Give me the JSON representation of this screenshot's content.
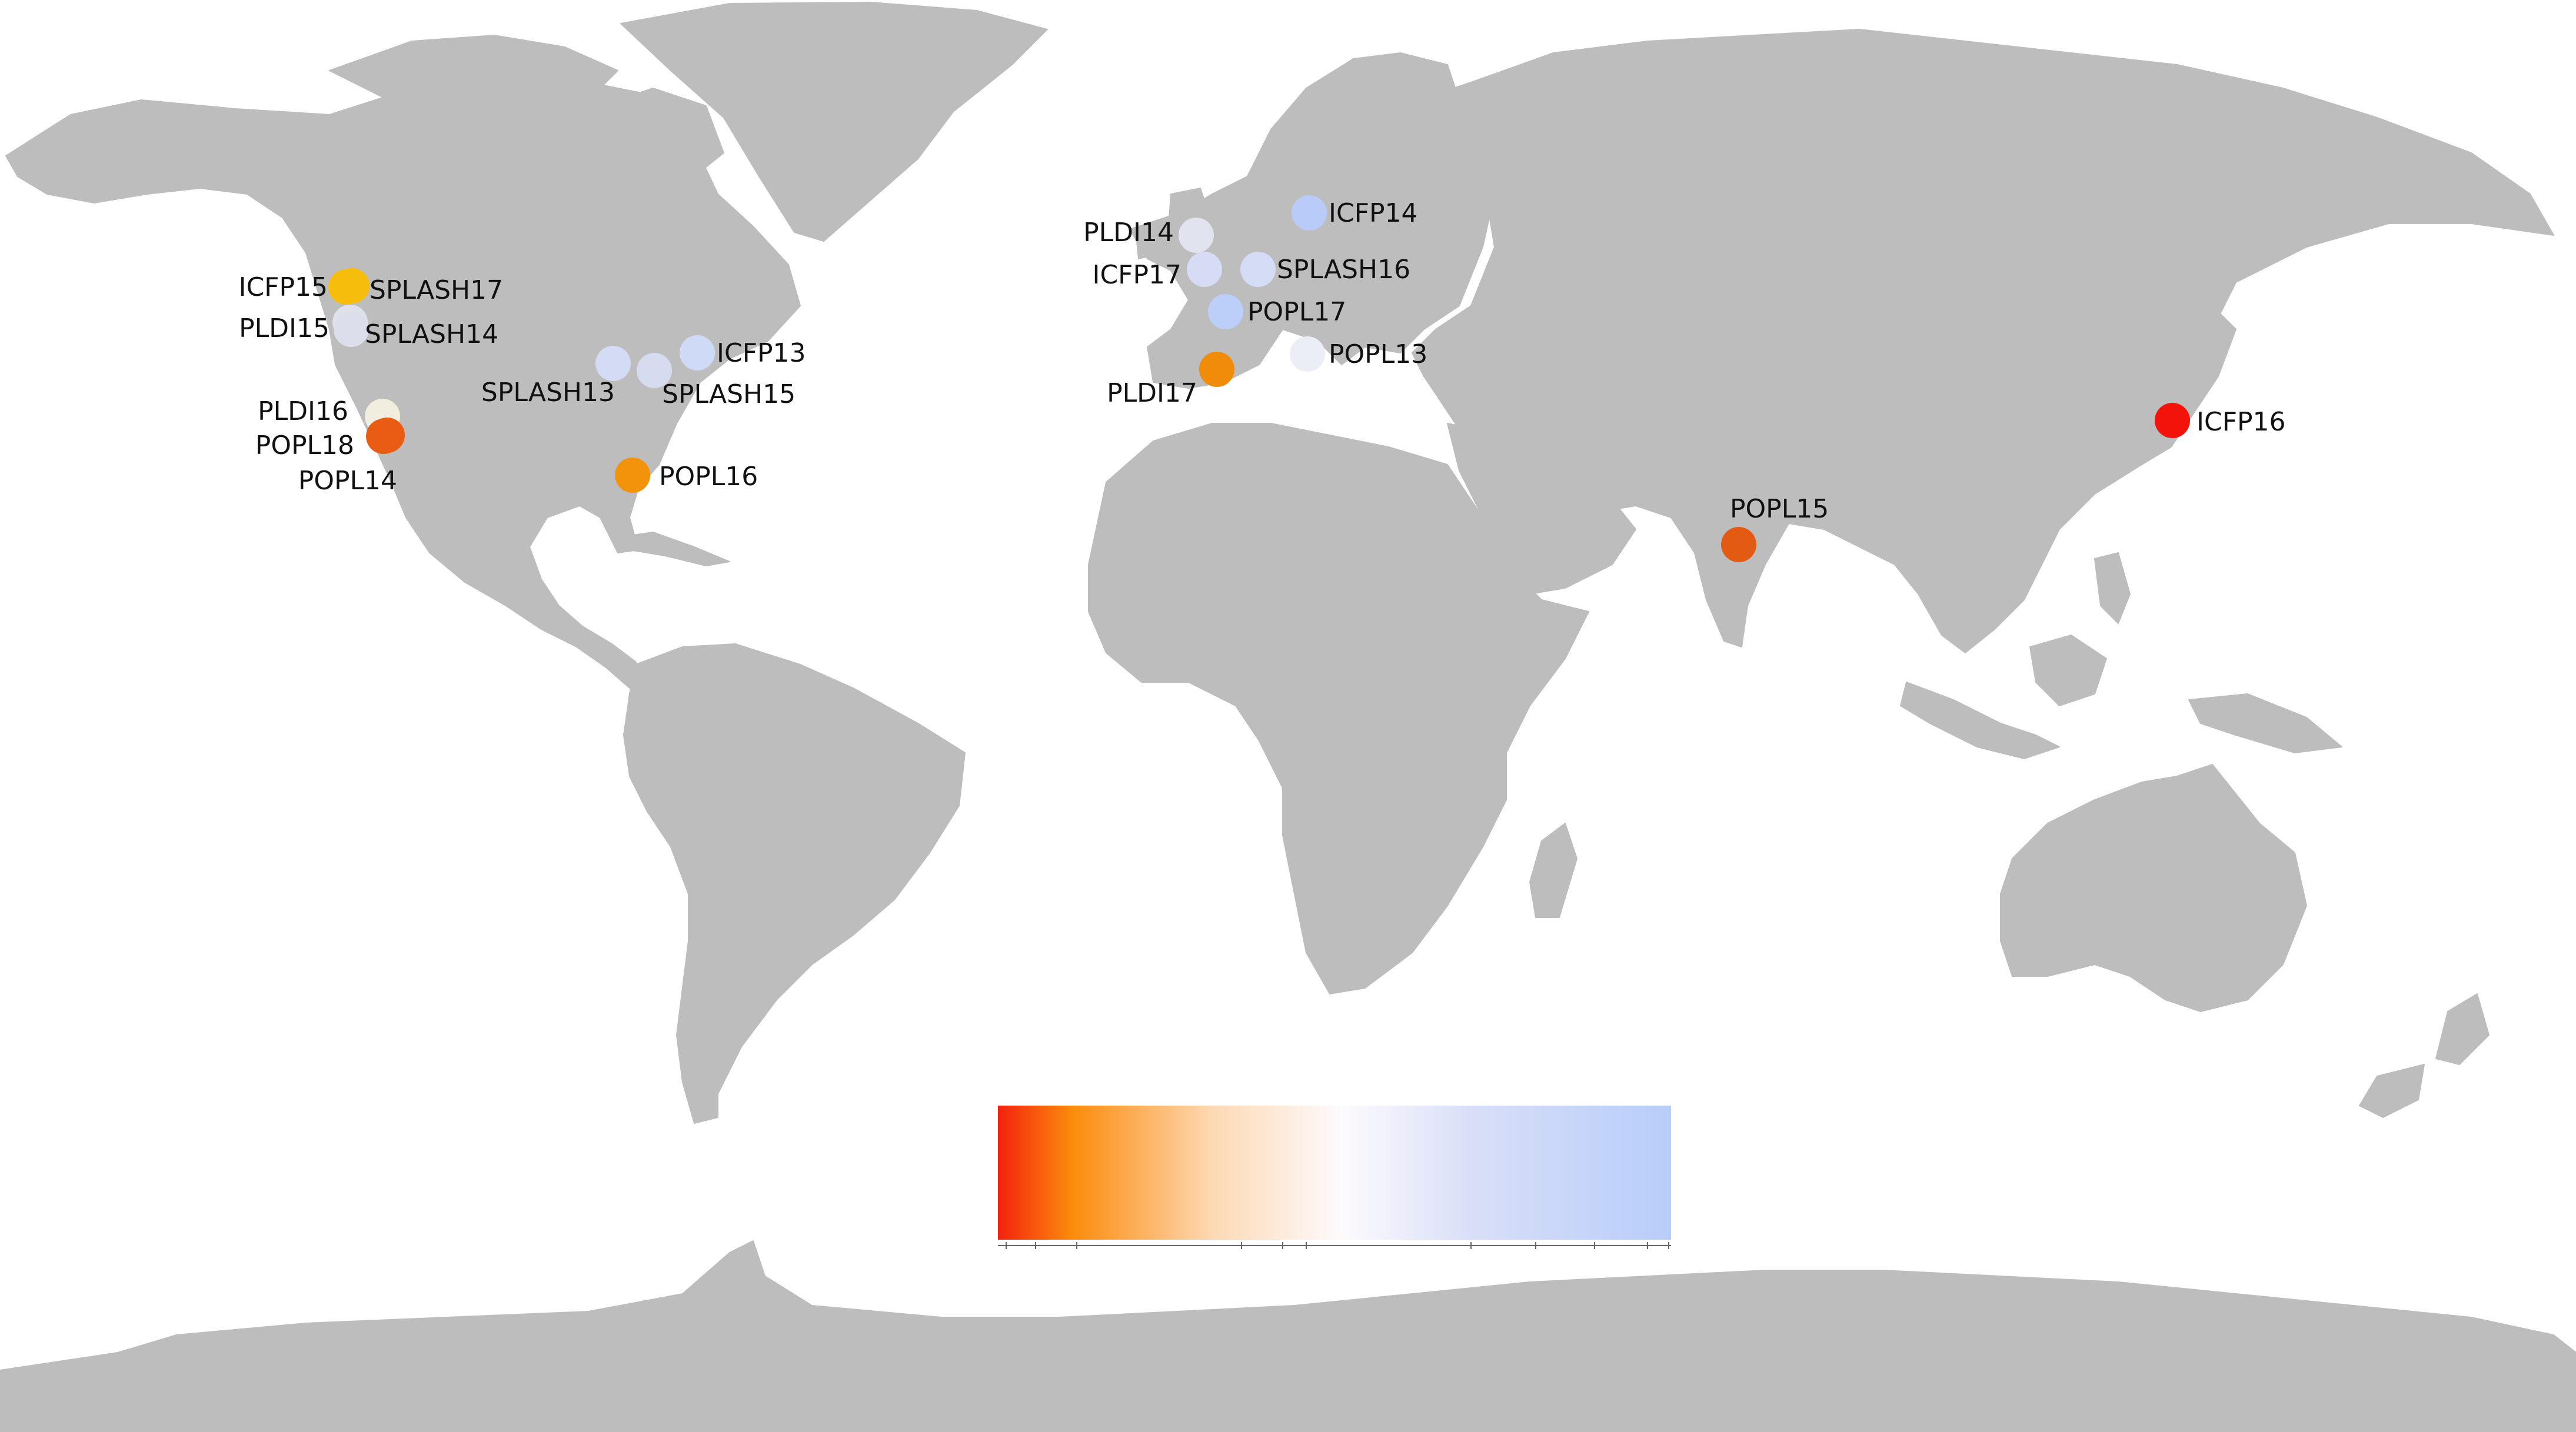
{
  "markers": [
    {
      "label": "ICFP13",
      "color": "#cfdaf7"
    },
    {
      "label": "ICFP14",
      "color": "#b9ccf9"
    },
    {
      "label": "ICFP15",
      "color": "#f6bd0c"
    },
    {
      "label": "ICFP16",
      "color": "#f4130b"
    },
    {
      "label": "ICFP17",
      "color": "#d5dcf3"
    },
    {
      "label": "PLDI14",
      "color": "#e1e4ee"
    },
    {
      "label": "PLDI15",
      "color": "#dfe1ea"
    },
    {
      "label": "PLDI16",
      "color": "#f2eedf"
    },
    {
      "label": "PLDI17",
      "color": "#f08c0a"
    },
    {
      "label": "POPL13",
      "color": "#eceef7"
    },
    {
      "label": "POPL14",
      "color": "#e85c13"
    },
    {
      "label": "POPL15",
      "color": "#e35a13"
    },
    {
      "label": "POPL16",
      "color": "#f3920b"
    },
    {
      "label": "POPL17",
      "color": "#bccff8"
    },
    {
      "label": "POPL18",
      "color": "#e85c13"
    },
    {
      "label": "SPLASH13",
      "color": "#d4dbf5"
    },
    {
      "label": "SPLASH14",
      "color": "#dcdfeb"
    },
    {
      "label": "SPLASH15",
      "color": "#d6dcf0"
    },
    {
      "label": "SPLASH16",
      "color": "#d4dcf6"
    },
    {
      "label": "SPLASH17",
      "color": "#f6bd0c"
    }
  ],
  "colorbar": {
    "stops": [
      "#f3220f",
      "#fb8b0b",
      "#fdd9b5",
      "#fdfbfd",
      "#d9dff8",
      "#b7cdf9"
    ]
  },
  "land_color": "#bdbdbd"
}
